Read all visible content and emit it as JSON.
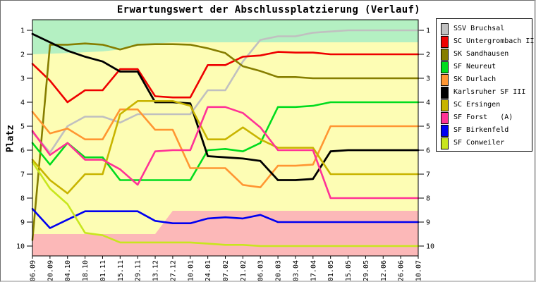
{
  "chart_data": {
    "type": "line",
    "title": "Erwartungswert der Abschlussplatzierung (Verlauf)",
    "ylabel": "Platz",
    "x_labels": [
      "06.09",
      "20.09",
      "04.10",
      "18.10",
      "01.11",
      "15.11",
      "29.11",
      "13.12",
      "27.12",
      "10.01",
      "24.01",
      "07.02",
      "21.02",
      "06.03",
      "20.03",
      "03.04",
      "17.04",
      "01.05",
      "15.05",
      "29.05",
      "12.06",
      "26.06",
      "10.07"
    ],
    "y_ticks": [
      1,
      2,
      3,
      4,
      5,
      6,
      7,
      8,
      9,
      10
    ],
    "y_axis": {
      "inverted": true,
      "label_both_sides": true
    },
    "grid": false,
    "legend_position": "outside-right",
    "plot_bg_color": "#fdfdb4",
    "bands": [
      {
        "name": "top-zone-green",
        "color": "#b4f0c2",
        "edge": "top",
        "boundary": [
          [
            0,
            2.0
          ],
          [
            2,
            1.95
          ],
          [
            4,
            1.88
          ],
          [
            5,
            1.8
          ],
          [
            6,
            1.65
          ],
          [
            7,
            1.55
          ],
          [
            8,
            1.5
          ],
          [
            22,
            1.5
          ]
        ]
      },
      {
        "name": "bottom-zone-pink",
        "color": "#fcb8b8",
        "edge": "bottom",
        "boundary": [
          [
            0,
            9.5
          ],
          [
            7,
            9.5
          ],
          [
            8,
            8.53
          ],
          [
            22,
            8.53
          ]
        ]
      }
    ],
    "series": [
      {
        "name": "SSV Bruchsal",
        "color": "#c0c0c0",
        "width": 2.6,
        "values": [
          5.25,
          6.1,
          5.0,
          4.6,
          4.6,
          4.85,
          4.5,
          4.5,
          4.5,
          4.5,
          3.5,
          3.5,
          2.3,
          1.4,
          1.25,
          1.25,
          1.1,
          1.05,
          1.0,
          1.0,
          1.0,
          1.0,
          1.0
        ]
      },
      {
        "name": "SC Untergrombach II",
        "color": "#ee0000",
        "width": 2.6,
        "values": [
          2.4,
          3.1,
          4.0,
          3.5,
          3.5,
          2.62,
          2.62,
          3.75,
          3.8,
          3.8,
          2.45,
          2.45,
          2.1,
          2.05,
          1.9,
          1.93,
          1.93,
          2.0,
          2.0,
          2.0,
          2.0,
          2.0,
          2.0
        ]
      },
      {
        "name": "SK Sandhausen",
        "color": "#867e00",
        "width": 2.6,
        "values": [
          9.75,
          1.6,
          1.6,
          1.55,
          1.6,
          1.8,
          1.6,
          1.58,
          1.58,
          1.6,
          1.75,
          1.95,
          2.5,
          2.7,
          2.95,
          2.95,
          3.0,
          3.0,
          3.0,
          3.0,
          3.0,
          3.0,
          3.0
        ]
      },
      {
        "name": "SF Neureut",
        "color": "#00dc1e",
        "width": 2.6,
        "values": [
          5.7,
          6.6,
          5.7,
          6.3,
          6.3,
          7.25,
          7.25,
          7.25,
          7.25,
          7.25,
          6.0,
          5.95,
          6.05,
          5.7,
          4.2,
          4.2,
          4.15,
          4.0,
          4.0,
          4.0,
          4.0,
          4.0,
          4.0
        ]
      },
      {
        "name": "SK Durlach",
        "color": "#ff9632",
        "width": 2.6,
        "values": [
          4.4,
          5.3,
          5.1,
          5.55,
          5.55,
          4.3,
          4.3,
          5.15,
          5.15,
          6.75,
          6.75,
          6.75,
          7.45,
          7.55,
          6.65,
          6.65,
          6.6,
          5.0,
          5.0,
          5.0,
          5.0,
          5.0,
          5.0
        ]
      },
      {
        "name": "Karlsruher SF III",
        "color": "#000000",
        "width": 2.8,
        "values": [
          1.15,
          1.5,
          1.85,
          2.1,
          2.3,
          2.72,
          2.72,
          4.0,
          4.0,
          4.05,
          6.25,
          6.3,
          6.35,
          6.45,
          7.25,
          7.25,
          7.2,
          6.05,
          6.0,
          6.0,
          6.0,
          6.0,
          6.0
        ]
      },
      {
        "name": "SC Ersingen",
        "color": "#c8b400",
        "width": 2.6,
        "values": [
          6.4,
          7.25,
          7.8,
          7.0,
          7.0,
          4.5,
          3.95,
          3.95,
          3.95,
          4.15,
          5.55,
          5.55,
          5.05,
          5.55,
          5.9,
          5.9,
          5.9,
          7.0,
          7.0,
          7.0,
          7.0,
          7.0,
          7.0
        ]
      },
      {
        "name": "SF Forst   (A)",
        "color": "#ff3296",
        "width": 2.6,
        "values": [
          5.2,
          6.2,
          5.7,
          6.4,
          6.4,
          6.8,
          7.44,
          6.05,
          6.0,
          6.0,
          4.2,
          4.2,
          4.45,
          5.05,
          6.0,
          6.0,
          6.0,
          8.0,
          8.0,
          8.0,
          8.0,
          8.0,
          8.0
        ]
      },
      {
        "name": "SF Birkenfeld",
        "color": "#0000f0",
        "width": 2.6,
        "values": [
          8.45,
          9.25,
          8.9,
          8.55,
          8.55,
          8.55,
          8.55,
          8.95,
          9.05,
          9.05,
          8.85,
          8.8,
          8.85,
          8.7,
          9.0,
          9.0,
          9.0,
          9.0,
          9.0,
          9.0,
          9.0,
          9.0,
          9.0
        ]
      },
      {
        "name": "SF Conweiler",
        "color": "#c8e61e",
        "width": 2.6,
        "values": [
          6.5,
          7.6,
          8.25,
          9.45,
          9.55,
          9.85,
          9.85,
          9.85,
          9.85,
          9.85,
          9.9,
          9.95,
          9.95,
          10.0,
          10.0,
          10.0,
          10.0,
          10.0,
          10.0,
          10.0,
          10.0,
          10.0,
          10.0
        ]
      }
    ]
  }
}
